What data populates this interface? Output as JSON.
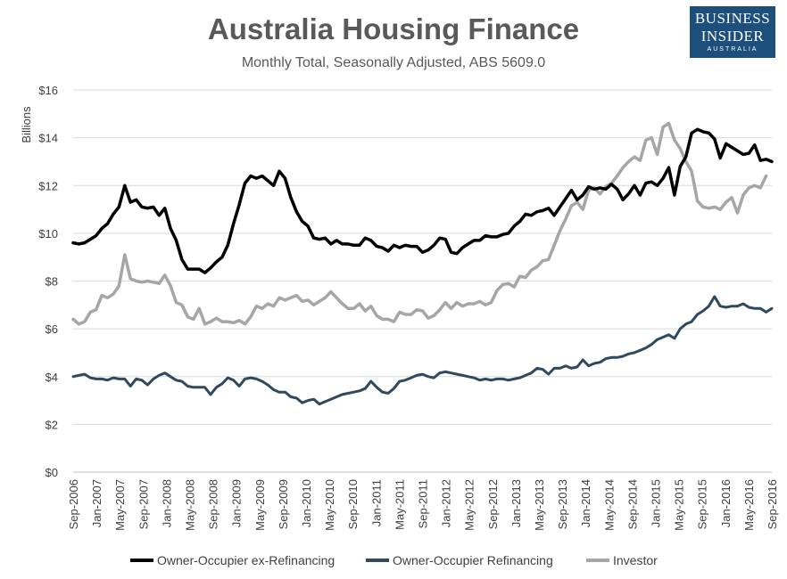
{
  "logo": {
    "line1": "BUSINESS",
    "line2": "INSIDER",
    "line3": "AUSTRALIA"
  },
  "chart_data": {
    "type": "line",
    "title": "Australia Housing Finance",
    "subtitle": "Monthly Total, Seasonally Adjusted, ABS 5609.0",
    "ylabel": "Billions",
    "ylim": [
      0,
      16
    ],
    "y_ticks": [
      "$0",
      "$2",
      "$4",
      "$6",
      "$8",
      "$10",
      "$12",
      "$14",
      "$16"
    ],
    "grid": true,
    "legend_position": "bottom",
    "x_tick_labels": [
      "Sep-2006",
      "Jan-2007",
      "May-2007",
      "Sep-2007",
      "Jan-2008",
      "May-2008",
      "Sep-2008",
      "Jan-2009",
      "May-2009",
      "Sep-2009",
      "Jan-2010",
      "May-2010",
      "Sep-2010",
      "Jan-2011",
      "May-2011",
      "Sep-2011",
      "Jan-2012",
      "May-2012",
      "Sep-2012",
      "Jan-2013",
      "May-2013",
      "Sep-2013",
      "Jan-2014",
      "May-2014",
      "Sep-2014",
      "Jan-2015",
      "May-2015",
      "Sep-2015",
      "Jan-2016",
      "May-2016",
      "Sep-2016"
    ],
    "x_start": "Sep-2006",
    "x_end": "Sep-2016",
    "series": [
      {
        "name": "Owner-Occupier ex-Refinancing",
        "color": "#000000",
        "values": [
          9.6,
          9.55,
          9.6,
          9.75,
          9.9,
          10.2,
          10.4,
          10.8,
          11.1,
          12.0,
          11.3,
          11.4,
          11.1,
          11.05,
          11.1,
          10.75,
          11.05,
          10.2,
          9.7,
          8.9,
          8.5,
          8.5,
          8.5,
          8.35,
          8.55,
          8.8,
          9.0,
          9.5,
          10.4,
          11.2,
          12.1,
          12.4,
          12.3,
          12.4,
          12.2,
          12.0,
          12.6,
          12.3,
          11.5,
          10.9,
          10.5,
          10.3,
          9.8,
          9.75,
          9.8,
          9.55,
          9.7,
          9.55,
          9.55,
          9.5,
          9.5,
          9.8,
          9.7,
          9.45,
          9.4,
          9.25,
          9.5,
          9.4,
          9.5,
          9.45,
          9.45,
          9.2,
          9.3,
          9.5,
          9.8,
          9.75,
          9.2,
          9.15,
          9.4,
          9.55,
          9.7,
          9.7,
          9.9,
          9.85,
          9.85,
          9.95,
          10.0,
          10.3,
          10.5,
          10.8,
          10.75,
          10.9,
          10.95,
          11.05,
          10.75,
          11.1,
          11.45,
          11.8,
          11.4,
          11.6,
          11.95,
          11.85,
          11.9,
          11.85,
          12.05,
          11.85,
          11.4,
          11.65,
          12.0,
          11.6,
          12.1,
          12.15,
          12.0,
          12.3,
          12.75,
          11.6,
          12.8,
          13.2,
          14.2,
          14.35,
          14.25,
          14.2,
          13.95,
          13.15,
          13.75,
          13.6,
          13.45,
          13.3,
          13.35,
          13.7,
          13.05,
          13.1,
          13.0
        ]
      },
      {
        "name": "Owner-Occupier Refinancing",
        "color": "#2f4a5f",
        "values": [
          4.0,
          4.05,
          4.1,
          3.95,
          3.9,
          3.9,
          3.85,
          3.95,
          3.9,
          3.9,
          3.6,
          3.9,
          3.85,
          3.65,
          3.9,
          4.05,
          4.15,
          4.0,
          3.85,
          3.8,
          3.6,
          3.55,
          3.55,
          3.55,
          3.25,
          3.55,
          3.7,
          3.95,
          3.85,
          3.6,
          3.9,
          3.95,
          3.9,
          3.8,
          3.65,
          3.45,
          3.35,
          3.35,
          3.15,
          3.1,
          2.9,
          3.0,
          3.05,
          2.85,
          2.95,
          3.05,
          3.15,
          3.25,
          3.3,
          3.35,
          3.4,
          3.5,
          3.8,
          3.55,
          3.35,
          3.3,
          3.5,
          3.8,
          3.85,
          3.95,
          4.05,
          4.1,
          4.0,
          3.95,
          4.15,
          4.2,
          4.15,
          4.1,
          4.05,
          4.0,
          3.95,
          3.85,
          3.9,
          3.85,
          3.9,
          3.9,
          3.85,
          3.9,
          3.95,
          4.05,
          4.15,
          4.35,
          4.3,
          4.1,
          4.35,
          4.35,
          4.45,
          4.35,
          4.4,
          4.7,
          4.45,
          4.55,
          4.6,
          4.75,
          4.8,
          4.8,
          4.85,
          4.95,
          5.0,
          5.1,
          5.2,
          5.35,
          5.55,
          5.65,
          5.75,
          5.6,
          6.0,
          6.2,
          6.3,
          6.6,
          6.75,
          6.95,
          7.35,
          6.95,
          6.9,
          6.95,
          6.95,
          7.05,
          6.9,
          6.85,
          6.85,
          6.7,
          6.85
        ]
      },
      {
        "name": "Investor",
        "color": "#a6a6a6",
        "values": [
          6.4,
          6.2,
          6.3,
          6.7,
          6.8,
          7.4,
          7.3,
          7.45,
          7.8,
          9.1,
          8.1,
          8.0,
          7.95,
          8.0,
          7.95,
          7.9,
          8.25,
          7.8,
          7.1,
          7.0,
          6.5,
          6.4,
          6.85,
          6.2,
          6.3,
          6.45,
          6.3,
          6.3,
          6.25,
          6.35,
          6.2,
          6.5,
          6.95,
          6.85,
          7.05,
          6.95,
          7.3,
          7.2,
          7.3,
          7.4,
          7.15,
          7.2,
          7.0,
          7.15,
          7.3,
          7.55,
          7.3,
          7.05,
          6.85,
          6.85,
          7.05,
          6.75,
          6.95,
          6.55,
          6.4,
          6.4,
          6.3,
          6.7,
          6.6,
          6.6,
          6.8,
          6.75,
          6.45,
          6.55,
          6.8,
          7.1,
          6.85,
          7.1,
          6.95,
          7.05,
          7.05,
          7.15,
          7.0,
          7.1,
          7.6,
          7.85,
          7.9,
          7.75,
          8.2,
          8.15,
          8.45,
          8.6,
          8.85,
          8.9,
          9.5,
          10.1,
          10.6,
          11.15,
          11.3,
          11.0,
          11.8,
          11.9,
          11.65,
          11.95,
          12.1,
          12.4,
          12.75,
          13.0,
          13.2,
          13.05,
          13.9,
          14.0,
          13.3,
          14.45,
          14.6,
          13.9,
          13.55,
          13.0,
          12.6,
          11.35,
          11.1,
          11.05,
          11.1,
          11.0,
          11.3,
          11.5,
          10.85,
          11.6,
          11.9,
          12.0,
          11.9,
          12.4
        ]
      }
    ]
  }
}
